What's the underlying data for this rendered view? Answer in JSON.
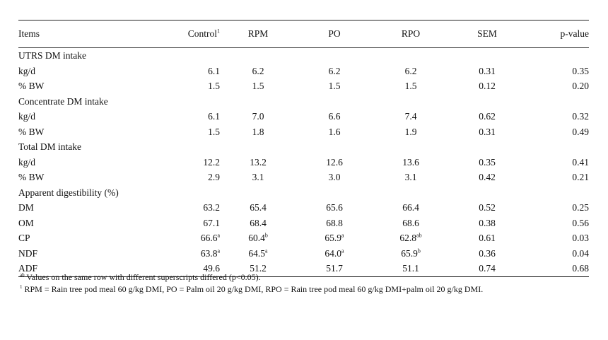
{
  "table": {
    "columns": [
      {
        "label": "Items",
        "sup": ""
      },
      {
        "label": "Control",
        "sup": "1"
      },
      {
        "label": "RPM",
        "sup": ""
      },
      {
        "label": "PO",
        "sup": ""
      },
      {
        "label": "RPO",
        "sup": ""
      },
      {
        "label": "SEM",
        "sup": ""
      },
      {
        "label": "p-value",
        "sup": ""
      }
    ],
    "rows": [
      {
        "type": "group",
        "label": "UTRS DM intake"
      },
      {
        "type": "data",
        "label": "kg/d",
        "cells": [
          {
            "v": "6.1",
            "s": ""
          },
          {
            "v": "6.2",
            "s": ""
          },
          {
            "v": "6.2",
            "s": ""
          },
          {
            "v": "6.2",
            "s": ""
          },
          {
            "v": "0.31",
            "s": ""
          },
          {
            "v": "0.35",
            "s": ""
          }
        ]
      },
      {
        "type": "data",
        "label": "% BW",
        "cells": [
          {
            "v": "1.5",
            "s": ""
          },
          {
            "v": "1.5",
            "s": ""
          },
          {
            "v": "1.5",
            "s": ""
          },
          {
            "v": "1.5",
            "s": ""
          },
          {
            "v": "0.12",
            "s": ""
          },
          {
            "v": "0.20",
            "s": ""
          }
        ]
      },
      {
        "type": "group",
        "label": "Concentrate DM intake"
      },
      {
        "type": "data",
        "label": "kg/d",
        "cells": [
          {
            "v": "6.1",
            "s": ""
          },
          {
            "v": "7.0",
            "s": ""
          },
          {
            "v": "6.6",
            "s": ""
          },
          {
            "v": "7.4",
            "s": ""
          },
          {
            "v": "0.62",
            "s": ""
          },
          {
            "v": "0.32",
            "s": ""
          }
        ]
      },
      {
        "type": "data",
        "label": "% BW",
        "cells": [
          {
            "v": "1.5",
            "s": ""
          },
          {
            "v": "1.8",
            "s": ""
          },
          {
            "v": "1.6",
            "s": ""
          },
          {
            "v": "1.9",
            "s": ""
          },
          {
            "v": "0.31",
            "s": ""
          },
          {
            "v": "0.49",
            "s": ""
          }
        ]
      },
      {
        "type": "group",
        "label": "Total DM intake"
      },
      {
        "type": "data",
        "label": "kg/d",
        "cells": [
          {
            "v": "12.2",
            "s": ""
          },
          {
            "v": "13.2",
            "s": ""
          },
          {
            "v": "12.6",
            "s": ""
          },
          {
            "v": "13.6",
            "s": ""
          },
          {
            "v": "0.35",
            "s": ""
          },
          {
            "v": "0.41",
            "s": ""
          }
        ]
      },
      {
        "type": "data",
        "label": "% BW",
        "cells": [
          {
            "v": "2.9",
            "s": ""
          },
          {
            "v": "3.1",
            "s": ""
          },
          {
            "v": "3.0",
            "s": ""
          },
          {
            "v": "3.1",
            "s": ""
          },
          {
            "v": "0.42",
            "s": ""
          },
          {
            "v": "0.21",
            "s": ""
          }
        ]
      },
      {
        "type": "group",
        "label": "Apparent digestibility (%)"
      },
      {
        "type": "data",
        "label": "DM",
        "cells": [
          {
            "v": "63.2",
            "s": ""
          },
          {
            "v": "65.4",
            "s": ""
          },
          {
            "v": "65.6",
            "s": ""
          },
          {
            "v": "66.4",
            "s": ""
          },
          {
            "v": "0.52",
            "s": ""
          },
          {
            "v": "0.25",
            "s": ""
          }
        ]
      },
      {
        "type": "data",
        "label": "OM",
        "cells": [
          {
            "v": "67.1",
            "s": ""
          },
          {
            "v": "68.4",
            "s": ""
          },
          {
            "v": "68.8",
            "s": ""
          },
          {
            "v": "68.6",
            "s": ""
          },
          {
            "v": "0.38",
            "s": ""
          },
          {
            "v": "0.56",
            "s": ""
          }
        ]
      },
      {
        "type": "data",
        "label": "CP",
        "cells": [
          {
            "v": "66.6",
            "s": "a"
          },
          {
            "v": "60.4",
            "s": "b"
          },
          {
            "v": "65.9",
            "s": "a"
          },
          {
            "v": "62.8",
            "s": "ab"
          },
          {
            "v": "0.61",
            "s": ""
          },
          {
            "v": "0.03",
            "s": ""
          }
        ]
      },
      {
        "type": "data",
        "label": "NDF",
        "cells": [
          {
            "v": "63.8",
            "s": "a"
          },
          {
            "v": "64.5",
            "s": "a"
          },
          {
            "v": "64.0",
            "s": "a"
          },
          {
            "v": "65.9",
            "s": "b"
          },
          {
            "v": "0.36",
            "s": ""
          },
          {
            "v": "0.04",
            "s": ""
          }
        ]
      },
      {
        "type": "data",
        "label": "ADF",
        "cells": [
          {
            "v": "49.6",
            "s": ""
          },
          {
            "v": "51.2",
            "s": ""
          },
          {
            "v": "51.7",
            "s": ""
          },
          {
            "v": "51.1",
            "s": ""
          },
          {
            "v": "0.74",
            "s": ""
          },
          {
            "v": "0.68",
            "s": ""
          }
        ]
      }
    ]
  },
  "footnotes": [
    {
      "sup": "ab",
      "text": " Values on the same row with different superscripts differed (p<0.05)."
    },
    {
      "sup": "1",
      "text": " RPM = Rain tree pod meal 60 g/kg DMI, PO = Palm oil 20 g/kg DMI, RPO = Rain tree pod meal 60 g/kg DMI+palm oil 20 g/kg DMI."
    }
  ]
}
